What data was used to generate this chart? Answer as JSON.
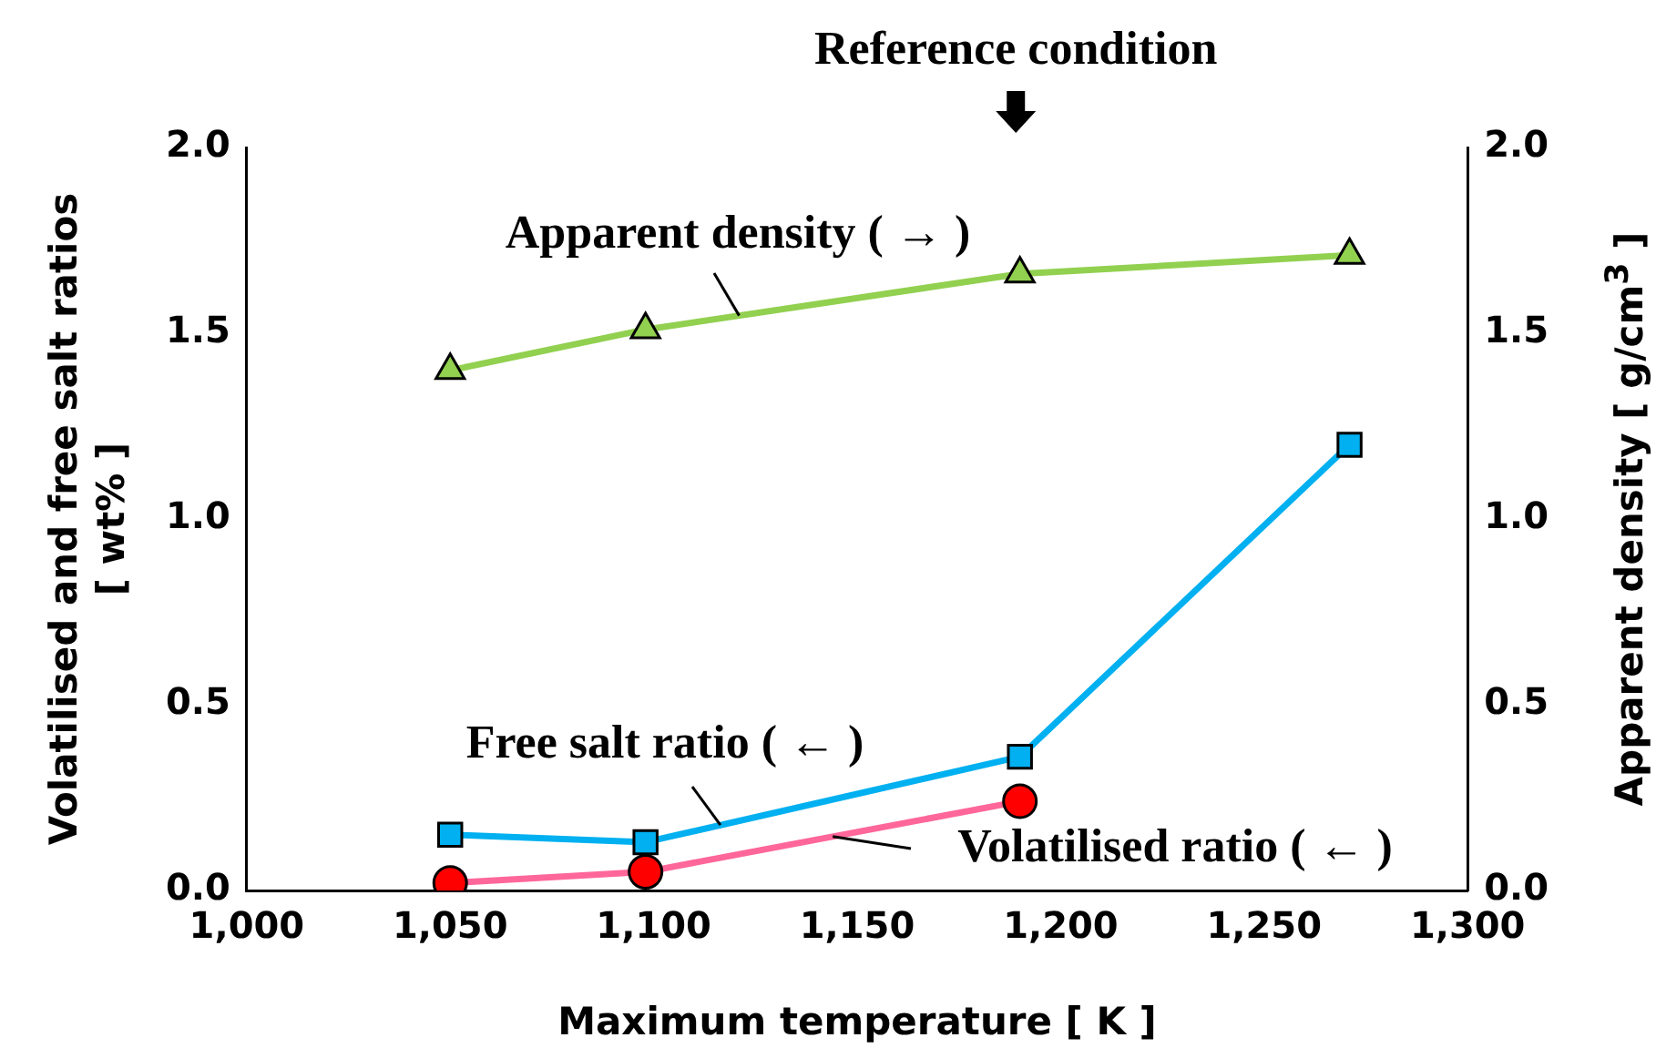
{
  "chart_data": {
    "type": "line",
    "xlabel": "Maximum temperature [ K ]",
    "ylabel": "Volatilised and free salt ratios\n[ wt% ]",
    "y2label": "Apparent density [ g/cm$^{3}$ ]",
    "xlim": [
      1000,
      1300
    ],
    "xticks": [
      {
        "value": 1000,
        "label": "1,000"
      },
      {
        "value": 1050,
        "label": "1,050"
      },
      {
        "value": 1100,
        "label": "1,100"
      },
      {
        "value": 1150,
        "label": "1,150"
      },
      {
        "value": 1200,
        "label": "1,200"
      },
      {
        "value": 1250,
        "label": "1,250"
      },
      {
        "value": 1300,
        "label": "1,300"
      }
    ],
    "ylim": [
      0,
      2
    ],
    "yticks": [
      {
        "value": 0,
        "label": "0.0"
      },
      {
        "value": 0.5,
        "label": "0.5"
      },
      {
        "value": 1,
        "label": "1.0"
      },
      {
        "value": 1.5,
        "label": "1.5"
      },
      {
        "value": 2,
        "label": "2.0"
      }
    ],
    "y2lim": [
      0,
      2
    ],
    "y2ticks": [
      {
        "value": 0,
        "label": "0.0"
      },
      {
        "value": 0.5,
        "label": "0.5"
      },
      {
        "value": 1,
        "label": "1.0"
      },
      {
        "value": 1.5,
        "label": "1.5"
      },
      {
        "value": 2,
        "label": "2.0"
      }
    ],
    "x": [
      1050,
      1098,
      1190,
      1271
    ],
    "series": [
      {
        "name": "Apparent density ( → )",
        "color": "#92d050",
        "values": [
          1.4,
          1.51,
          1.66,
          1.71
        ],
        "axis": "y2",
        "marker": "triangle"
      },
      {
        "name": "Free salt ratio ( ← )",
        "color": "#00b0f0",
        "values": [
          0.15,
          0.13,
          0.36,
          1.2
        ],
        "marker": "square"
      },
      {
        "name": "Volatilised ratio ( ← )",
        "color": "#ff6699",
        "values": [
          0.02,
          0.05,
          0.24,
          null
        ],
        "marker": "circle",
        "colors": [
          "#ff0000",
          "#ff0000",
          "#ff0000",
          "#ff0000"
        ]
      }
    ],
    "annotations": [
      "Reference condition"
    ],
    "grid": false
  }
}
